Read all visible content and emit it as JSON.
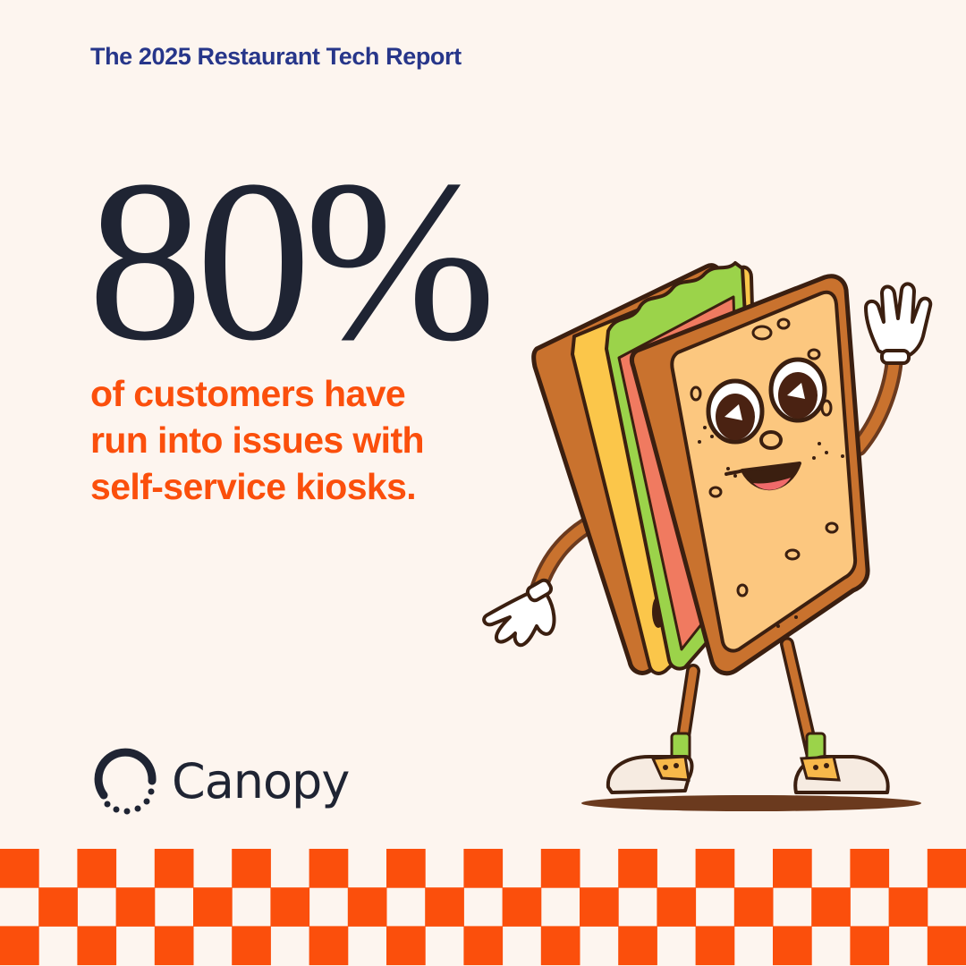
{
  "header": {
    "report_title": "The 2025 Restaurant Tech Report"
  },
  "stat": {
    "value": "80%",
    "caption_lines": [
      "of customers have",
      "run into issues with",
      "self-service kiosks."
    ]
  },
  "brand": {
    "name": "Canopy",
    "logo_icon": "canopy-logo-icon"
  },
  "illustration": {
    "subject": "sandwich-mascot-icon"
  },
  "colors": {
    "background": "#fdf5ef",
    "title_navy": "#27368a",
    "stat_dark": "#1f2433",
    "accent_orange": "#fb4f0c",
    "checker_light": "#fdf5ef",
    "checker_orange": "#fb4f0c"
  }
}
